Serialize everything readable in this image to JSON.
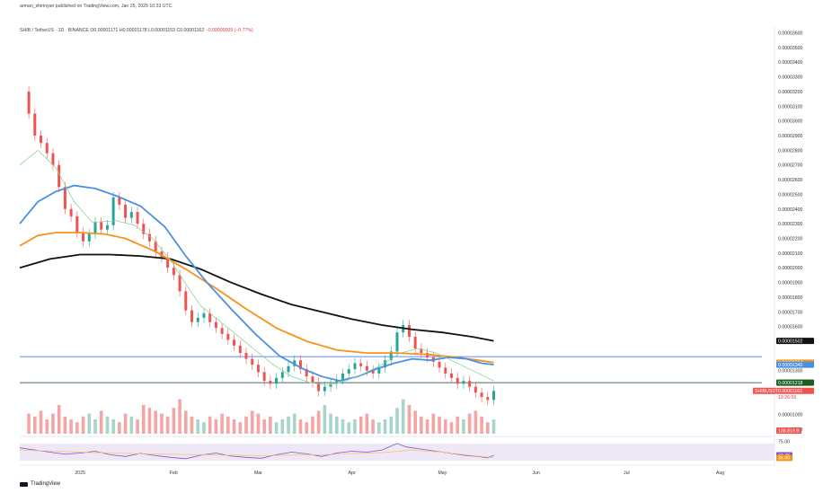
{
  "header": {
    "published": "arman_shirinyan published on TradingView.com, Jan 25, 2025 10:33 UTC",
    "symbol_line": "SHIB / TetherUS · 1D · BINANCE",
    "ohlc_o": "O0.00001171",
    "ohlc_h": "H0.00001178",
    "ohlc_l": "L0.00001153",
    "ohlc_c": "C0.00001162",
    "ohlc_change": "−0.00000009 (−0.77%)"
  },
  "footer": {
    "brand": "TradingView"
  },
  "colors": {
    "up": "#26a69a",
    "down": "#ef5350",
    "vol_up": "#a5d6c9",
    "vol_down": "#f5a5a3",
    "ma_black": "#111111",
    "ma_orange": "#f7931a",
    "ma_blue": "#4a90e2",
    "ma_green": "#8fd19e",
    "hline_blue": "#2962ff",
    "hline_dark": "#0b3d3a",
    "rsi": "#7e57c2",
    "rsi_band": "#ede7f6"
  },
  "chart_data": {
    "type": "line",
    "title": "SHIB / TetherUS · 1D · BINANCE",
    "y_ticks": [
      "0.00003600",
      "0.00003500",
      "0.00003400",
      "0.00003300",
      "0.00003200",
      "0.00003100",
      "0.00003000",
      "0.00002900",
      "0.00002800",
      "0.00002700",
      "0.00002600",
      "0.00002500",
      "0.00002400",
      "0.00002300",
      "0.00002200",
      "0.00002100",
      "0.00002000",
      "0.00001900",
      "0.00001800",
      "0.00001700",
      "0.00001600",
      "0.00001500",
      "0.00001300",
      "0.00001000",
      "0.00000900"
    ],
    "y_tick_values": [
      36,
      35,
      34,
      33,
      32,
      31,
      30,
      29,
      28,
      27,
      26,
      25,
      24,
      23,
      22,
      21,
      20,
      19,
      18,
      17,
      16,
      15,
      13,
      10,
      9
    ],
    "ylim": [
      8.7,
      36.4
    ],
    "x_ticks": [
      "2025",
      "Feb",
      "Mar",
      "Apr",
      "May",
      "Jun",
      "Jul",
      "Aug"
    ],
    "x_tick_days": [
      20,
      51,
      79,
      110,
      140,
      171,
      201,
      232
    ],
    "xlim": [
      0,
      250
    ],
    "price_badges": [
      {
        "label": "0.00001502",
        "value": 15.02,
        "color": "#111111"
      },
      {
        "label": "0.00001354",
        "value": 13.54,
        "color": "#f7931a"
      },
      {
        "label": "0.00001340",
        "value": 13.4,
        "color": "#4a90e2"
      },
      {
        "label": "0.00001218",
        "value": 12.18,
        "color": "#1b5e20"
      },
      {
        "label": "0.00001162",
        "value": 11.62,
        "color": "#ef5350"
      }
    ],
    "symbol_badge": "SHIBUSDT",
    "countdown": "13:26:59",
    "horizontal_lines": [
      {
        "value": 13.95,
        "color": "#2962ff"
      },
      {
        "value": 12.18,
        "color": "#0b3d3a"
      }
    ],
    "volume_badge": "138.819 B",
    "close_points": [
      [
        1,
        32.0
      ],
      [
        3,
        30.5
      ],
      [
        5,
        29.0
      ],
      [
        7,
        28.5
      ],
      [
        9,
        27.8
      ],
      [
        11,
        27.0
      ],
      [
        13,
        25.5
      ],
      [
        15,
        24.0
      ],
      [
        17,
        23.5
      ],
      [
        19,
        22.4
      ],
      [
        21,
        21.8
      ],
      [
        23,
        22.3
      ],
      [
        25,
        23.1
      ],
      [
        27,
        22.6
      ],
      [
        29,
        22.9
      ],
      [
        31,
        24.8
      ],
      [
        33,
        24.3
      ],
      [
        35,
        23.4
      ],
      [
        37,
        23.8
      ],
      [
        39,
        23.0
      ],
      [
        41,
        22.3
      ],
      [
        43,
        21.8
      ],
      [
        45,
        21.1
      ],
      [
        47,
        20.7
      ],
      [
        49,
        20.0
      ],
      [
        51,
        19.5
      ],
      [
        53,
        18.4
      ],
      [
        55,
        17.1
      ],
      [
        57,
        16.3
      ],
      [
        59,
        16.6
      ],
      [
        61,
        16.9
      ],
      [
        63,
        16.3
      ],
      [
        65,
        15.9
      ],
      [
        67,
        15.5
      ],
      [
        69,
        15.1
      ],
      [
        71,
        14.7
      ],
      [
        73,
        14.2
      ],
      [
        75,
        13.8
      ],
      [
        77,
        13.4
      ],
      [
        79,
        12.9
      ],
      [
        81,
        12.3
      ],
      [
        83,
        12.1
      ],
      [
        85,
        12.5
      ],
      [
        87,
        12.9
      ],
      [
        89,
        13.3
      ],
      [
        91,
        13.7
      ],
      [
        93,
        13.1
      ],
      [
        95,
        12.6
      ],
      [
        97,
        12.2
      ],
      [
        99,
        11.6
      ],
      [
        101,
        11.9
      ],
      [
        103,
        12.1
      ],
      [
        105,
        12.4
      ],
      [
        107,
        12.8
      ],
      [
        109,
        13.1
      ],
      [
        111,
        13.5
      ],
      [
        113,
        13.3
      ],
      [
        115,
        13.0
      ],
      [
        117,
        12.8
      ],
      [
        119,
        13.2
      ],
      [
        121,
        13.7
      ],
      [
        123,
        14.3
      ],
      [
        125,
        15.6
      ],
      [
        127,
        16.1
      ],
      [
        129,
        15.3
      ],
      [
        131,
        14.5
      ],
      [
        133,
        14.2
      ],
      [
        135,
        13.9
      ],
      [
        137,
        13.6
      ],
      [
        139,
        13.2
      ],
      [
        141,
        12.8
      ],
      [
        143,
        12.5
      ],
      [
        145,
        12.1
      ],
      [
        147,
        12.3
      ],
      [
        149,
        11.9
      ],
      [
        151,
        11.5
      ],
      [
        153,
        11.2
      ],
      [
        155,
        11.0
      ],
      [
        157,
        11.62
      ]
    ],
    "series": [
      {
        "name": "",
        "color": "#111111",
        "points": [
          [
            0,
            20.0
          ],
          [
            10,
            20.6
          ],
          [
            20,
            20.9
          ],
          [
            30,
            20.9
          ],
          [
            40,
            20.8
          ],
          [
            50,
            20.6
          ],
          [
            60,
            19.9
          ],
          [
            70,
            19.0
          ],
          [
            80,
            18.2
          ],
          [
            90,
            17.5
          ],
          [
            100,
            17.0
          ],
          [
            110,
            16.5
          ],
          [
            120,
            16.1
          ],
          [
            130,
            15.8
          ],
          [
            140,
            15.6
          ],
          [
            150,
            15.3
          ],
          [
            157,
            15.02
          ]
        ]
      },
      {
        "name": "",
        "color": "#f7931a",
        "points": [
          [
            0,
            21.5
          ],
          [
            6,
            22.2
          ],
          [
            12,
            22.4
          ],
          [
            20,
            22.4
          ],
          [
            28,
            22.3
          ],
          [
            35,
            22.0
          ],
          [
            45,
            21.1
          ],
          [
            55,
            19.9
          ],
          [
            65,
            18.6
          ],
          [
            75,
            17.2
          ],
          [
            85,
            15.9
          ],
          [
            95,
            15.0
          ],
          [
            105,
            14.4
          ],
          [
            115,
            14.2
          ],
          [
            125,
            14.2
          ],
          [
            135,
            14.1
          ],
          [
            145,
            13.9
          ],
          [
            152,
            13.7
          ],
          [
            157,
            13.54
          ]
        ]
      },
      {
        "name": "",
        "color": "#4a90e2",
        "points": [
          [
            0,
            23.0
          ],
          [
            6,
            24.5
          ],
          [
            12,
            25.2
          ],
          [
            18,
            25.6
          ],
          [
            25,
            25.4
          ],
          [
            32,
            24.9
          ],
          [
            40,
            24.2
          ],
          [
            48,
            22.8
          ],
          [
            55,
            20.8
          ],
          [
            62,
            19.0
          ],
          [
            70,
            17.2
          ],
          [
            78,
            15.5
          ],
          [
            86,
            14.0
          ],
          [
            94,
            13.1
          ],
          [
            100,
            12.6
          ],
          [
            106,
            12.3
          ],
          [
            112,
            12.6
          ],
          [
            118,
            13.1
          ],
          [
            124,
            13.5
          ],
          [
            130,
            13.8
          ],
          [
            136,
            13.7
          ],
          [
            142,
            13.9
          ],
          [
            148,
            13.8
          ],
          [
            153,
            13.5
          ],
          [
            157,
            13.4
          ]
        ]
      },
      {
        "name": "",
        "color": "#8fd19e",
        "points": [
          [
            0,
            27.0
          ],
          [
            6,
            28.0
          ],
          [
            12,
            26.8
          ],
          [
            18,
            24.5
          ],
          [
            24,
            23.1
          ],
          [
            32,
            23.2
          ],
          [
            38,
            22.9
          ],
          [
            44,
            22.0
          ],
          [
            50,
            20.5
          ],
          [
            55,
            18.9
          ],
          [
            60,
            17.4
          ],
          [
            66,
            16.4
          ],
          [
            72,
            15.4
          ],
          [
            78,
            14.4
          ],
          [
            84,
            13.4
          ],
          [
            90,
            12.6
          ],
          [
            96,
            12.2
          ],
          [
            102,
            12.0
          ],
          [
            108,
            12.3
          ],
          [
            114,
            12.8
          ],
          [
            120,
            13.4
          ],
          [
            126,
            14.2
          ],
          [
            132,
            14.5
          ],
          [
            138,
            14.2
          ],
          [
            144,
            13.6
          ],
          [
            150,
            13.0
          ],
          [
            157,
            12.3
          ]
        ]
      }
    ],
    "rsi": {
      "ylim": [
        20,
        80
      ],
      "ticks": [
        {
          "label": "75.00",
          "value": 75
        },
        {
          "label": "42.79",
          "value": 42.79
        },
        {
          "label": "36.90",
          "value": 36.9
        }
      ],
      "badges": [
        {
          "label": "42.79",
          "value": 42.79,
          "color": "#7e57c2"
        },
        {
          "label": "36.90",
          "value": 36.9,
          "color": "#f7931a"
        }
      ],
      "values": [
        [
          0,
          60
        ],
        [
          5,
          55
        ],
        [
          10,
          50
        ],
        [
          15,
          45
        ],
        [
          20,
          48
        ],
        [
          25,
          52
        ],
        [
          30,
          44
        ],
        [
          35,
          40
        ],
        [
          40,
          47
        ],
        [
          45,
          42
        ],
        [
          50,
          38
        ],
        [
          55,
          35
        ],
        [
          60,
          43
        ],
        [
          65,
          48
        ],
        [
          70,
          41
        ],
        [
          75,
          38
        ],
        [
          80,
          36
        ],
        [
          85,
          44
        ],
        [
          90,
          50
        ],
        [
          95,
          46
        ],
        [
          100,
          40
        ],
        [
          105,
          48
        ],
        [
          110,
          52
        ],
        [
          115,
          50
        ],
        [
          120,
          55
        ],
        [
          125,
          70
        ],
        [
          128,
          62
        ],
        [
          132,
          58
        ],
        [
          136,
          54
        ],
        [
          140,
          50
        ],
        [
          144,
          46
        ],
        [
          148,
          42
        ],
        [
          152,
          40
        ],
        [
          155,
          37
        ],
        [
          157,
          42.79
        ]
      ],
      "signal": [
        [
          0,
          55
        ],
        [
          20,
          50
        ],
        [
          40,
          46
        ],
        [
          60,
          44
        ],
        [
          80,
          42
        ],
        [
          100,
          44
        ],
        [
          120,
          49
        ],
        [
          130,
          55
        ],
        [
          140,
          50
        ],
        [
          150,
          42
        ],
        [
          157,
          36.9
        ]
      ]
    }
  }
}
